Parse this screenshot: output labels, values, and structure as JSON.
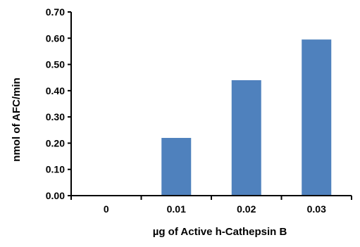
{
  "chart_data": {
    "type": "bar",
    "categories": [
      "0",
      "0.01",
      "0.02",
      "0.03"
    ],
    "values": [
      0,
      0.22,
      0.44,
      0.595
    ],
    "xlabel": "µg of Active h-Cathepsin B",
    "ylabel": "nmol of AFC/min",
    "ylim": [
      0,
      0.7
    ],
    "yticks": [
      "0.00",
      "0.10",
      "0.20",
      "0.30",
      "0.40",
      "0.50",
      "0.60",
      "0.70"
    ],
    "bar_color": "#4F81BD",
    "grid": false,
    "legend": "none"
  }
}
